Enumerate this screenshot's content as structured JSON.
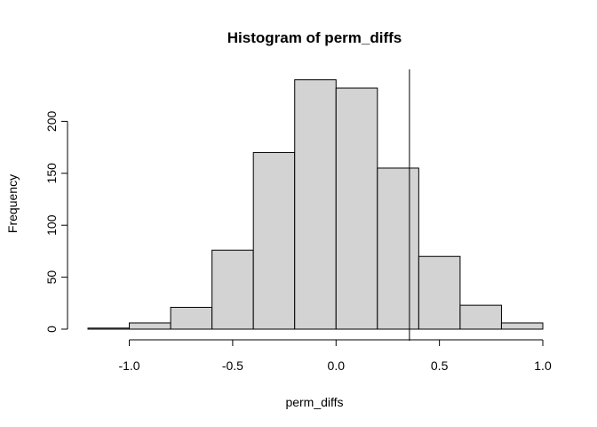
{
  "chart_data": {
    "type": "bar",
    "title": "Histogram of perm_diffs",
    "xlabel": "perm_diffs",
    "ylabel": "Frequency",
    "bins": [
      {
        "start": -1.2,
        "end": -1.0,
        "count": 1
      },
      {
        "start": -1.0,
        "end": -0.8,
        "count": 6
      },
      {
        "start": -0.8,
        "end": -0.6,
        "count": 21
      },
      {
        "start": -0.6,
        "end": -0.4,
        "count": 76
      },
      {
        "start": -0.4,
        "end": -0.2,
        "count": 170
      },
      {
        "start": -0.2,
        "end": 0.0,
        "count": 240
      },
      {
        "start": 0.0,
        "end": 0.2,
        "count": 232
      },
      {
        "start": 0.2,
        "end": 0.4,
        "count": 155
      },
      {
        "start": 0.4,
        "end": 0.6,
        "count": 70
      },
      {
        "start": 0.6,
        "end": 0.8,
        "count": 23
      },
      {
        "start": 0.8,
        "end": 1.0,
        "count": 6
      }
    ],
    "xlim": [
      -1.2,
      1.0
    ],
    "ylim": [
      0,
      250
    ],
    "x_ticks": [
      -1.0,
      -0.5,
      0.0,
      0.5,
      1.0
    ],
    "x_tick_labels": [
      "-1.0",
      "-0.5",
      "0.0",
      "0.5",
      "1.0"
    ],
    "y_ticks": [
      0,
      50,
      100,
      150,
      200
    ],
    "y_tick_labels": [
      "0",
      "50",
      "100",
      "150",
      "200"
    ],
    "vline": 0.355,
    "bar_color": "#d3d3d3",
    "grid": false,
    "legend": "none"
  }
}
